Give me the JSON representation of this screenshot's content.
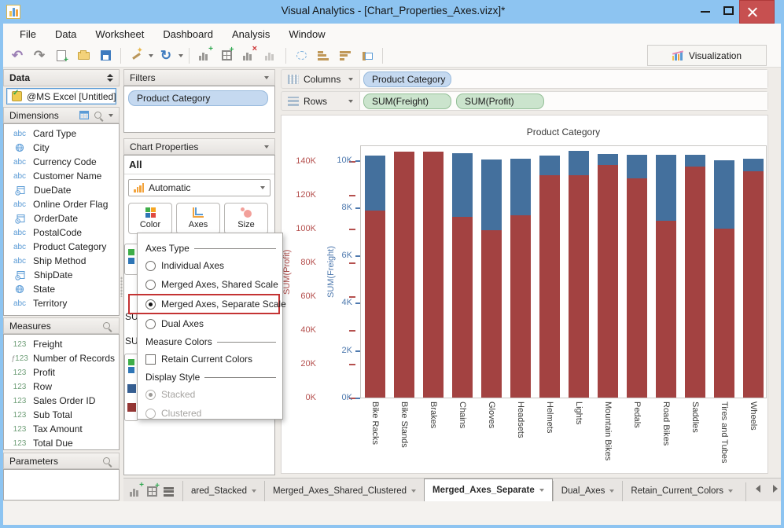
{
  "window": {
    "title": "Visual Analytics - [Chart_Properties_Axes.vizx]*"
  },
  "menu": {
    "items": [
      "File",
      "Data",
      "Worksheet",
      "Dashboard",
      "Analysis",
      "Window"
    ]
  },
  "toolbar": {
    "visualization": "Visualization"
  },
  "data_panel": {
    "header": "Data",
    "source": "@MS Excel [Untitled]",
    "dimensions": {
      "header": "Dimensions",
      "items": [
        {
          "icon": "abc",
          "label": "Card Type"
        },
        {
          "icon": "globe",
          "label": "City"
        },
        {
          "icon": "abc",
          "label": "Currency Code"
        },
        {
          "icon": "abc",
          "label": "Customer Name"
        },
        {
          "icon": "date",
          "label": "DueDate"
        },
        {
          "icon": "abc",
          "label": "Online Order Flag"
        },
        {
          "icon": "date",
          "label": "OrderDate"
        },
        {
          "icon": "abc",
          "label": "PostalCode"
        },
        {
          "icon": "abc",
          "label": "Product Category"
        },
        {
          "icon": "abc",
          "label": "Ship Method"
        },
        {
          "icon": "date",
          "label": "ShipDate"
        },
        {
          "icon": "globe",
          "label": "State"
        },
        {
          "icon": "abc",
          "label": "Territory"
        }
      ]
    },
    "measures": {
      "header": "Measures",
      "items": [
        {
          "icon": "123",
          "label": "Freight"
        },
        {
          "icon": "f123",
          "label": "Number of Records"
        },
        {
          "icon": "123",
          "label": "Profit"
        },
        {
          "icon": "123",
          "label": "Row"
        },
        {
          "icon": "123",
          "label": "Sales Order ID"
        },
        {
          "icon": "123",
          "label": "Sub Total"
        },
        {
          "icon": "123",
          "label": "Tax Amount"
        },
        {
          "icon": "123",
          "label": "Total Due"
        }
      ]
    },
    "parameters": {
      "header": "Parameters"
    }
  },
  "filters": {
    "header": "Filters",
    "items": [
      "Product Category"
    ]
  },
  "chart_properties": {
    "header": "Chart Properties",
    "scope": "All",
    "type_selector": "Automatic",
    "buttons": [
      {
        "label": "Color"
      },
      {
        "label": "Axes"
      },
      {
        "label": "Size"
      }
    ],
    "popup": {
      "sections": [
        {
          "title": "Axes Type",
          "options": [
            {
              "kind": "radio",
              "label": "Individual Axes",
              "selected": false
            },
            {
              "kind": "radio",
              "label": "Merged Axes, Shared Scale",
              "selected": false
            },
            {
              "kind": "radio",
              "label": "Merged Axes, Separate Scale",
              "selected": true,
              "highlight": true
            },
            {
              "kind": "radio",
              "label": "Dual Axes",
              "selected": false
            }
          ]
        },
        {
          "title": "Measure Colors",
          "options": [
            {
              "kind": "checkbox",
              "label": "Retain Current Colors",
              "checked": false
            }
          ]
        },
        {
          "title": "Display Style",
          "options": [
            {
              "kind": "radio",
              "label": "Stacked",
              "selected": true,
              "disabled": true
            },
            {
              "kind": "radio",
              "label": "Clustered",
              "selected": false,
              "disabled": true
            }
          ]
        }
      ]
    },
    "hidden_fragments": {
      "partial_texts": [
        "SU",
        "SU"
      ]
    }
  },
  "shelves": {
    "columns": {
      "label": "Columns",
      "pills": [
        {
          "label": "Product Category",
          "color": "blue"
        }
      ]
    },
    "rows": {
      "label": "Rows",
      "pills": [
        {
          "label": "SUM(Freight)",
          "color": "green"
        },
        {
          "label": "SUM(Profit)",
          "color": "green"
        }
      ]
    }
  },
  "chart_data": {
    "type": "bar",
    "stacked": true,
    "title": "Product Category",
    "grid": false,
    "legend_position": "none",
    "categories": [
      "Bike Racks",
      "Bike Stands",
      "Brakes",
      "Chains",
      "Gloves",
      "Headsets",
      "Helmets",
      "Lights",
      "Mountain Bikes",
      "Pedals",
      "Road Bikes",
      "Saddles",
      "Tires and Tubes",
      "Wheels"
    ],
    "series": [
      {
        "name": "SUM(Profit)",
        "color": "#A34241",
        "axis": "profit",
        "values_k": [
          111,
          146,
          146,
          107,
          99,
          108,
          132,
          132,
          138,
          130,
          105,
          137,
          100,
          134
        ]
      },
      {
        "name": "SUM(Freight)",
        "color": "#44709D",
        "axis": "freight",
        "values_k": [
          2.3,
          0,
          0,
          2.7,
          3.0,
          2.4,
          0.8,
          1.0,
          0.45,
          1.0,
          2.75,
          0.5,
          2.9,
          0.55
        ]
      }
    ],
    "axes": {
      "profit": {
        "label": "SUM(Profit)",
        "color": "#B5504E",
        "tick_values_k": [
          140,
          120,
          100,
          80,
          60,
          40,
          20,
          0
        ],
        "tick_suffix": "K",
        "range_k": [
          0,
          150
        ]
      },
      "freight": {
        "label": "SUM(Freight)",
        "color": "#4E79AE",
        "tick_values_k": [
          10,
          8,
          6,
          4,
          2,
          0
        ],
        "tick_suffix": "K",
        "range_k": [
          0,
          10.65
        ]
      }
    }
  },
  "tab_bar": {
    "tabs": [
      {
        "label": "ared_Stacked",
        "active": false
      },
      {
        "label": "Merged_Axes_Shared_Clustered",
        "active": false
      },
      {
        "label": "Merged_Axes_Separate",
        "active": true
      },
      {
        "label": "Dual_Axes",
        "active": false
      },
      {
        "label": "Retain_Current_Colors",
        "active": false
      }
    ]
  }
}
